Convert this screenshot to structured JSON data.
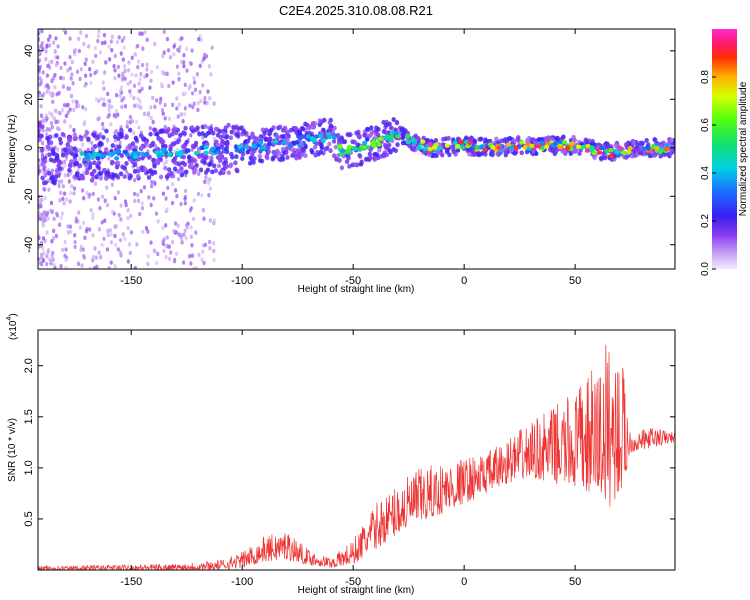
{
  "figure": {
    "title": "C2E4.2025.310.08.08.R21"
  },
  "chart_data": [
    {
      "type": "heatmap",
      "title": "C2E4.2025.310.08.08.R21",
      "xlabel": "Height of straight line (km)",
      "ylabel": "Frequency (Hz)",
      "xlim": [
        -192,
        95
      ],
      "ylim": [
        -50,
        49
      ],
      "xticks": [
        -150,
        -100,
        -50,
        0,
        50
      ],
      "yticks": [
        -40,
        -20,
        0,
        20,
        40
      ],
      "colorbar": {
        "label": "Normalized spectral amplitude",
        "range": [
          0,
          1
        ],
        "ticks": [
          0.0,
          0.2,
          0.4,
          0.6,
          0.8
        ],
        "tick_labels": [
          "0.0",
          "0.2",
          "0.4",
          "0.6",
          "0.8"
        ]
      },
      "ridge_frequency_hz": [
        {
          "x": -190,
          "y": -5
        },
        {
          "x": -160,
          "y": -3
        },
        {
          "x": -130,
          "y": -2
        },
        {
          "x": -100,
          "y": 0
        },
        {
          "x": -80,
          "y": 2
        },
        {
          "x": -60,
          "y": 5
        },
        {
          "x": -55,
          "y": -2
        },
        {
          "x": -40,
          "y": 2
        },
        {
          "x": -30,
          "y": 6
        },
        {
          "x": -25,
          "y": 3
        },
        {
          "x": -15,
          "y": 0
        },
        {
          "x": 0,
          "y": 1
        },
        {
          "x": 10,
          "y": 0
        },
        {
          "x": 30,
          "y": 1
        },
        {
          "x": 50,
          "y": 1
        },
        {
          "x": 65,
          "y": -2
        },
        {
          "x": 80,
          "y": 0
        },
        {
          "x": 95,
          "y": 0
        }
      ]
    },
    {
      "type": "line",
      "title": "",
      "xlabel": "Height of straight line (km)",
      "ylabel": "SNR (10 * v/v)",
      "multiplier_label": "(x10",
      "multiplier_exp": "4",
      "multiplier_close": ")",
      "xlim": [
        -192,
        95
      ],
      "ylim": [
        0,
        2.35
      ],
      "xticks": [
        -150,
        -100,
        -50,
        0,
        50
      ],
      "yticks": [
        0.5,
        1.0,
        1.5,
        2.0
      ],
      "ytick_labels": [
        "0.5",
        "1.0",
        "1.5",
        "2.0"
      ],
      "series": [
        {
          "name": "SNR",
          "color": "#ee3333",
          "envelope": [
            {
              "x": -192,
              "lo": 0.0,
              "hi": 0.04
            },
            {
              "x": -130,
              "lo": 0.0,
              "hi": 0.06
            },
            {
              "x": -110,
              "lo": 0.0,
              "hi": 0.1
            },
            {
              "x": -100,
              "lo": 0.02,
              "hi": 0.18
            },
            {
              "x": -90,
              "lo": 0.08,
              "hi": 0.33
            },
            {
              "x": -80,
              "lo": 0.1,
              "hi": 0.4
            },
            {
              "x": -70,
              "lo": 0.05,
              "hi": 0.2
            },
            {
              "x": -60,
              "lo": 0.02,
              "hi": 0.12
            },
            {
              "x": -50,
              "lo": 0.05,
              "hi": 0.3
            },
            {
              "x": -40,
              "lo": 0.2,
              "hi": 0.65
            },
            {
              "x": -30,
              "lo": 0.35,
              "hi": 0.85
            },
            {
              "x": -20,
              "lo": 0.45,
              "hi": 1.0
            },
            {
              "x": -10,
              "lo": 0.55,
              "hi": 1.05
            },
            {
              "x": 0,
              "lo": 0.65,
              "hi": 1.1
            },
            {
              "x": 10,
              "lo": 0.75,
              "hi": 1.15
            },
            {
              "x": 20,
              "lo": 0.85,
              "hi": 1.3
            },
            {
              "x": 30,
              "lo": 0.9,
              "hi": 1.45
            },
            {
              "x": 40,
              "lo": 0.85,
              "hi": 1.6
            },
            {
              "x": 50,
              "lo": 0.8,
              "hi": 1.75
            },
            {
              "x": 60,
              "lo": 0.7,
              "hi": 2.05
            },
            {
              "x": 65,
              "lo": 0.6,
              "hi": 2.3
            },
            {
              "x": 72,
              "lo": 0.8,
              "hi": 2.0
            },
            {
              "x": 75,
              "lo": 1.15,
              "hi": 1.35
            },
            {
              "x": 85,
              "lo": 1.2,
              "hi": 1.4
            },
            {
              "x": 95,
              "lo": 1.25,
              "hi": 1.35
            }
          ]
        }
      ]
    }
  ]
}
